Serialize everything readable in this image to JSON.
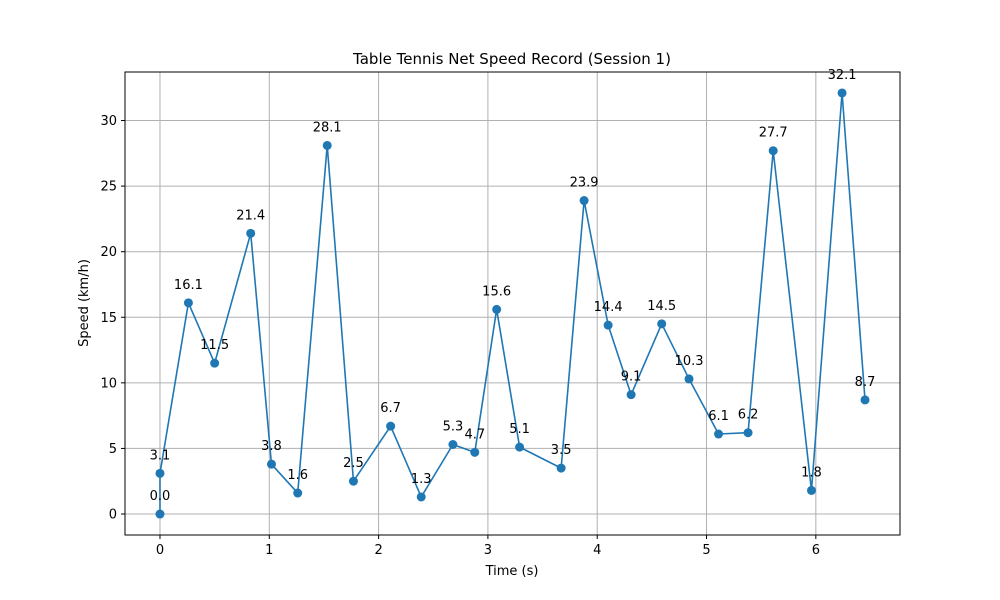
{
  "chart_data": {
    "type": "line",
    "title": "Table Tennis Net Speed Record (Session 1)",
    "xlabel": "Time (s)",
    "ylabel": "Speed (km/h)",
    "xlim": [
      -0.32,
      6.77
    ],
    "ylim": [
      -1.6,
      33.7
    ],
    "xticks": [
      0,
      1,
      2,
      3,
      4,
      5,
      6
    ],
    "yticks": [
      0,
      5,
      10,
      15,
      20,
      25,
      30
    ],
    "grid": true,
    "series": [
      {
        "color": "#1f77b4",
        "points": [
          {
            "x": 0.0,
            "y": 0.0,
            "label": "0.0"
          },
          {
            "x": 0.0,
            "y": 3.1,
            "label": "3.1"
          },
          {
            "x": 0.26,
            "y": 16.1,
            "label": "16.1"
          },
          {
            "x": 0.5,
            "y": 11.5,
            "label": "11.5"
          },
          {
            "x": 0.83,
            "y": 21.4,
            "label": "21.4"
          },
          {
            "x": 1.02,
            "y": 3.8,
            "label": "3.8"
          },
          {
            "x": 1.26,
            "y": 1.6,
            "label": "1.6"
          },
          {
            "x": 1.53,
            "y": 28.1,
            "label": "28.1"
          },
          {
            "x": 1.77,
            "y": 2.5,
            "label": "2.5"
          },
          {
            "x": 2.11,
            "y": 6.7,
            "label": "6.7"
          },
          {
            "x": 2.39,
            "y": 1.3,
            "label": "1.3"
          },
          {
            "x": 2.68,
            "y": 5.3,
            "label": "5.3"
          },
          {
            "x": 2.88,
            "y": 4.7,
            "label": "4.7"
          },
          {
            "x": 3.08,
            "y": 15.6,
            "label": "15.6"
          },
          {
            "x": 3.29,
            "y": 5.1,
            "label": "5.1"
          },
          {
            "x": 3.67,
            "y": 3.5,
            "label": "3.5"
          },
          {
            "x": 3.88,
            "y": 23.9,
            "label": "23.9"
          },
          {
            "x": 4.1,
            "y": 14.4,
            "label": "14.4"
          },
          {
            "x": 4.31,
            "y": 9.1,
            "label": "9.1"
          },
          {
            "x": 4.59,
            "y": 14.5,
            "label": "14.5"
          },
          {
            "x": 4.84,
            "y": 10.3,
            "label": "10.3"
          },
          {
            "x": 5.11,
            "y": 6.1,
            "label": "6.1"
          },
          {
            "x": 5.38,
            "y": 6.2,
            "label": "6.2"
          },
          {
            "x": 5.61,
            "y": 27.7,
            "label": "27.7"
          },
          {
            "x": 5.96,
            "y": 1.8,
            "label": "1.8"
          },
          {
            "x": 6.24,
            "y": 32.1,
            "label": "32.1"
          },
          {
            "x": 6.45,
            "y": 8.7,
            "label": "8.7"
          }
        ]
      }
    ]
  }
}
